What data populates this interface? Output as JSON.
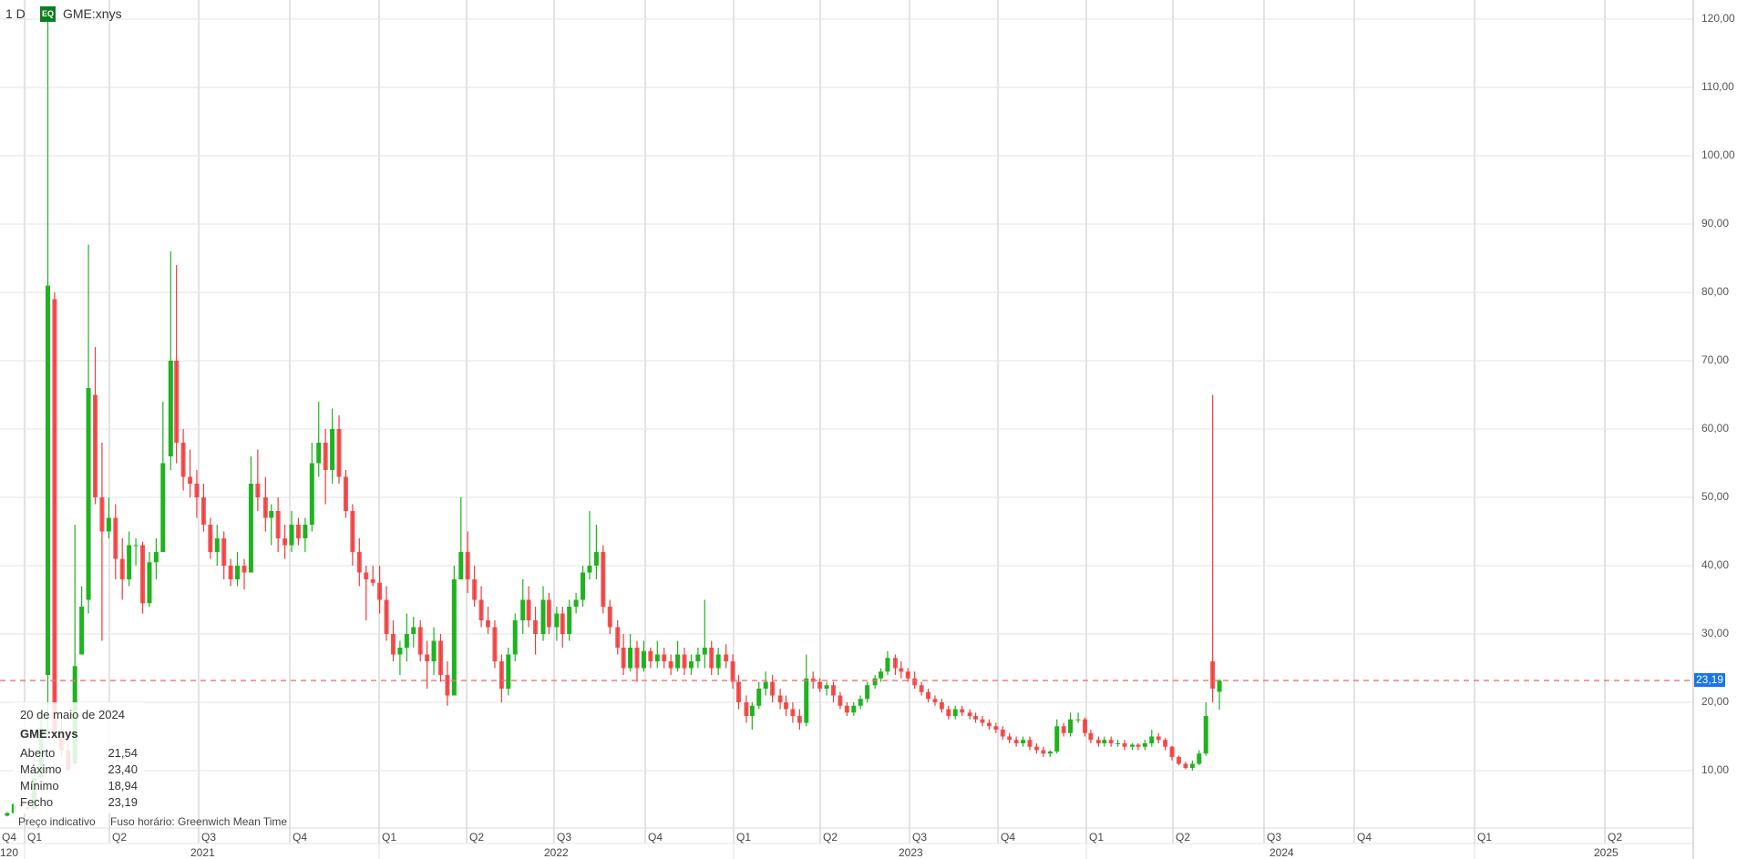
{
  "header": {
    "interval": "1 D",
    "badge": "EQ",
    "symbol": "GME:xnys"
  },
  "legend": {
    "date": "20 de maio de 2024",
    "symbol": "GME:xnys",
    "rows": [
      {
        "label": "Aberto",
        "value": "21,54"
      },
      {
        "label": "Máximo",
        "value": "23,40"
      },
      {
        "label": "Mínimo",
        "value": "18,94"
      },
      {
        "label": "Fecho",
        "value": "23,19"
      }
    ]
  },
  "footer": {
    "indicative": "Preço indicativo",
    "timezone": "Fuso horário: Greenwich Mean Time"
  },
  "colors": {
    "up": "#1fb31f",
    "down": "#f03a3a",
    "last_price_line": "#f07070",
    "price_tag": "#1a73e8",
    "badge": "#0b7d1f"
  },
  "chart_data": {
    "type": "candlestick",
    "series_label": "GME:xnys",
    "interval": "1 D",
    "last_price": 23.19,
    "last_price_label": "23,19",
    "ylim": [
      0,
      120
    ],
    "grid": true,
    "y_ticks": [
      "10,00",
      "20,00",
      "30,00",
      "40,00",
      "50,00",
      "60,00",
      "70,00",
      "80,00",
      "90,00",
      "100,00",
      "110,00",
      "120,00"
    ],
    "x_quarter_ticks": [
      "Q4",
      "Q1",
      "Q2",
      "Q3",
      "Q4",
      "Q1",
      "Q2",
      "Q3",
      "Q4",
      "Q1",
      "Q2",
      "Q3",
      "Q4",
      "Q1",
      "Q2",
      "Q3",
      "Q4",
      "Q1",
      "Q2"
    ],
    "x_year_ticks": [
      "120",
      "2021",
      "2022",
      "2023",
      "2024",
      "2025"
    ],
    "candles_columns": [
      "date",
      "open",
      "high",
      "low",
      "close"
    ],
    "candles": [
      [
        "2020-12-14",
        3.4,
        3.9,
        3.3,
        3.8
      ],
      [
        "2020-12-21",
        3.8,
        5.3,
        3.7,
        5.1
      ],
      [
        "2020-12-28",
        5.1,
        5.5,
        4.3,
        4.7
      ],
      [
        "2021-01-04",
        4.7,
        5.0,
        4.2,
        4.4
      ],
      [
        "2021-01-11",
        4.4,
        10.0,
        4.5,
        8.9
      ],
      [
        "2021-01-18",
        9.0,
        19.0,
        8.8,
        16.3
      ],
      [
        "2021-01-25",
        24.0,
        120.0,
        15.0,
        81.0
      ],
      [
        "2021-02-01",
        79.0,
        80.0,
        14.0,
        15.9
      ],
      [
        "2021-02-08",
        15.0,
        18.0,
        12.0,
        13.0
      ],
      [
        "2021-02-15",
        13.0,
        14.0,
        10.0,
        10.1
      ],
      [
        "2021-02-22",
        11.0,
        46.0,
        11.0,
        25.3
      ],
      [
        "2021-03-01",
        27.0,
        37.0,
        28.0,
        34.0
      ],
      [
        "2021-03-08",
        35.0,
        87.0,
        33.0,
        66.0
      ],
      [
        "2021-03-15",
        65.0,
        72.0,
        49.0,
        50.0
      ],
      [
        "2021-03-22",
        50.0,
        58.0,
        29.0,
        45.0
      ],
      [
        "2021-03-29",
        45.0,
        50.0,
        44.0,
        47.0
      ],
      [
        "2021-04-05",
        47.0,
        49.0,
        38.0,
        41.0
      ],
      [
        "2021-04-12",
        41.0,
        44.0,
        35.0,
        38.0
      ],
      [
        "2021-04-19",
        38.0,
        45.0,
        37.0,
        43.0
      ],
      [
        "2021-04-26",
        43.0,
        44.0,
        40.0,
        43.0
      ],
      [
        "2021-05-03",
        43.0,
        43.5,
        33.0,
        34.5
      ],
      [
        "2021-05-10",
        34.5,
        42.0,
        34.0,
        40.5
      ],
      [
        "2021-05-17",
        40.5,
        44.0,
        38.0,
        42.0
      ],
      [
        "2021-05-24",
        42.0,
        64.0,
        42.0,
        55.0
      ],
      [
        "2021-06-01",
        56.0,
        86.0,
        54.0,
        70.0
      ],
      [
        "2021-06-07",
        70.0,
        84.0,
        55.0,
        58.0
      ],
      [
        "2021-06-14",
        58.0,
        60.0,
        51.0,
        53.0
      ],
      [
        "2021-06-21",
        53.0,
        57.0,
        50.0,
        52.0
      ],
      [
        "2021-06-28",
        52.0,
        54.0,
        47.0,
        50.0
      ],
      [
        "2021-07-05",
        50.0,
        52.0,
        45.0,
        46.0
      ],
      [
        "2021-07-12",
        46.0,
        47.0,
        41.0,
        42.0
      ],
      [
        "2021-07-19",
        42.0,
        46.0,
        40.0,
        44.0
      ],
      [
        "2021-07-26",
        44.0,
        45.0,
        38.0,
        40.0
      ],
      [
        "2021-08-02",
        40.0,
        41.0,
        37.0,
        38.0
      ],
      [
        "2021-08-09",
        38.0,
        42.0,
        37.0,
        40.0
      ],
      [
        "2021-08-16",
        40.0,
        41.0,
        36.5,
        39.0
      ],
      [
        "2021-08-23",
        39.0,
        56.0,
        39.0,
        52.0
      ],
      [
        "2021-08-30",
        52.0,
        57.0,
        48.0,
        50.0
      ],
      [
        "2021-09-07",
        50.0,
        53.0,
        45.0,
        47.0
      ],
      [
        "2021-09-13",
        47.0,
        49.0,
        43.0,
        48.0
      ],
      [
        "2021-09-20",
        48.0,
        50.0,
        42.0,
        44.0
      ],
      [
        "2021-09-27",
        44.0,
        46.0,
        41.0,
        43.0
      ],
      [
        "2021-10-04",
        43.0,
        48.0,
        42.0,
        46.0
      ],
      [
        "2021-10-11",
        46.0,
        47.0,
        43.0,
        44.0
      ],
      [
        "2021-10-18",
        44.0,
        47.0,
        42.0,
        46.0
      ],
      [
        "2021-10-25",
        46.0,
        58.0,
        45.0,
        55.0
      ],
      [
        "2021-11-01",
        55.0,
        64.0,
        53.0,
        58.0
      ],
      [
        "2021-11-08",
        58.0,
        60.0,
        49.0,
        54.0
      ],
      [
        "2021-11-15",
        54.0,
        63.0,
        52.0,
        60.0
      ],
      [
        "2021-11-22",
        60.0,
        62.0,
        52.0,
        53.0
      ],
      [
        "2021-11-29",
        53.0,
        54.0,
        47.0,
        48.0
      ],
      [
        "2021-12-06",
        48.0,
        49.0,
        40.0,
        42.0
      ],
      [
        "2021-12-13",
        42.0,
        44.0,
        37.0,
        39.0
      ],
      [
        "2021-12-20",
        39.0,
        40.0,
        32.0,
        38.0
      ],
      [
        "2021-12-27",
        38.0,
        40.0,
        37.0,
        37.5
      ],
      [
        "2022-01-03",
        37.5,
        40.0,
        33.0,
        35.0
      ],
      [
        "2022-01-10",
        35.0,
        37.0,
        29.0,
        30.0
      ],
      [
        "2022-01-17",
        30.0,
        32.0,
        26.0,
        27.0
      ],
      [
        "2022-01-24",
        27.0,
        29.0,
        24.0,
        28.0
      ],
      [
        "2022-01-31",
        28.0,
        33.0,
        26.0,
        30.0
      ],
      [
        "2022-02-07",
        30.0,
        32.5,
        28.0,
        31.0
      ],
      [
        "2022-02-14",
        31.0,
        32.0,
        26.0,
        27.0
      ],
      [
        "2022-02-21",
        27.0,
        29.0,
        22.0,
        26.0
      ],
      [
        "2022-02-28",
        26.0,
        31.0,
        24.0,
        29.0
      ],
      [
        "2022-03-07",
        29.0,
        30.0,
        23.0,
        24.0
      ],
      [
        "2022-03-14",
        24.0,
        26.0,
        19.5,
        21.0
      ],
      [
        "2022-03-21",
        21.0,
        40.0,
        21.0,
        38.0
      ],
      [
        "2022-03-28",
        38.0,
        50.0,
        38.0,
        42.0
      ],
      [
        "2022-04-04",
        42.0,
        45.0,
        36.0,
        38.0
      ],
      [
        "2022-04-11",
        38.0,
        40.0,
        34.0,
        35.0
      ],
      [
        "2022-04-18",
        35.0,
        37.0,
        31.0,
        32.0
      ],
      [
        "2022-04-25",
        32.0,
        34.0,
        30.0,
        31.0
      ],
      [
        "2022-05-02",
        31.0,
        32.0,
        25.0,
        26.0
      ],
      [
        "2022-05-09",
        26.0,
        27.0,
        20.0,
        22.0
      ],
      [
        "2022-05-16",
        22.0,
        28.0,
        21.0,
        27.0
      ],
      [
        "2022-05-23",
        27.0,
        33.0,
        26.0,
        32.0
      ],
      [
        "2022-05-31",
        32.0,
        38.0,
        30.0,
        35.0
      ],
      [
        "2022-06-06",
        35.0,
        37.0,
        31.0,
        32.0
      ],
      [
        "2022-06-13",
        32.0,
        34.0,
        27.0,
        30.0
      ],
      [
        "2022-06-21",
        30.0,
        37.0,
        29.0,
        35.0
      ],
      [
        "2022-06-27",
        35.0,
        36.0,
        30.0,
        31.0
      ],
      [
        "2022-07-05",
        31.0,
        34.0,
        29.0,
        33.0
      ],
      [
        "2022-07-11",
        33.0,
        34.0,
        28.0,
        30.0
      ],
      [
        "2022-07-18",
        30.0,
        35.0,
        29.0,
        34.0
      ],
      [
        "2022-07-25",
        34.0,
        36.0,
        33.0,
        35.0
      ],
      [
        "2022-08-01",
        35.0,
        40.0,
        34.0,
        39.0
      ],
      [
        "2022-08-08",
        39.0,
        48.0,
        38.0,
        40.0
      ],
      [
        "2022-08-15",
        40.0,
        46.0,
        38.0,
        42.0
      ],
      [
        "2022-08-22",
        42.0,
        43.0,
        33.0,
        34.0
      ],
      [
        "2022-08-29",
        34.0,
        35.0,
        30.0,
        31.0
      ],
      [
        "2022-09-06",
        31.0,
        32.0,
        27.0,
        28.0
      ],
      [
        "2022-09-12",
        28.0,
        30.0,
        24.0,
        25.0
      ],
      [
        "2022-09-19",
        25.0,
        30.0,
        24.5,
        28.0
      ],
      [
        "2022-09-26",
        28.0,
        29.0,
        23.0,
        25.0
      ],
      [
        "2022-10-03",
        25.0,
        29.0,
        24.5,
        27.5
      ],
      [
        "2022-10-10",
        27.5,
        28.0,
        25.0,
        26.0
      ],
      [
        "2022-10-17",
        26.0,
        29.0,
        25.0,
        27.0
      ],
      [
        "2022-10-24",
        27.0,
        28.0,
        25.0,
        26.0
      ],
      [
        "2022-10-31",
        26.0,
        27.0,
        24.0,
        25.0
      ],
      [
        "2022-11-07",
        25.0,
        29.0,
        24.5,
        27.0
      ],
      [
        "2022-11-14",
        27.0,
        28.0,
        24.0,
        25.0
      ],
      [
        "2022-11-21",
        25.0,
        27.0,
        24.0,
        26.0
      ],
      [
        "2022-11-28",
        26.0,
        28.0,
        25.0,
        27.0
      ],
      [
        "2022-12-05",
        27.0,
        35.0,
        25.0,
        28.0
      ],
      [
        "2022-12-12",
        28.0,
        29.0,
        24.0,
        25.0
      ],
      [
        "2022-12-19",
        25.0,
        28.0,
        24.0,
        27.0
      ],
      [
        "2022-12-27",
        27.0,
        28.5,
        25.0,
        26.0
      ],
      [
        "2023-01-03",
        26.0,
        27.0,
        22.0,
        23.0
      ],
      [
        "2023-01-09",
        23.0,
        24.0,
        19.0,
        20.0
      ],
      [
        "2023-01-17",
        20.0,
        21.0,
        17.0,
        18.0
      ],
      [
        "2023-01-23",
        18.0,
        20.0,
        16.0,
        19.5
      ],
      [
        "2023-01-30",
        19.5,
        23.0,
        19.0,
        22.0
      ],
      [
        "2023-02-06",
        22.0,
        24.5,
        21.0,
        23.0
      ],
      [
        "2023-02-13",
        23.0,
        24.0,
        20.0,
        21.0
      ],
      [
        "2023-02-21",
        21.0,
        22.0,
        19.0,
        20.0
      ],
      [
        "2023-02-27",
        20.0,
        21.0,
        18.0,
        19.0
      ],
      [
        "2023-03-06",
        19.0,
        20.0,
        17.0,
        18.0
      ],
      [
        "2023-03-13",
        18.0,
        19.0,
        16.0,
        17.0
      ],
      [
        "2023-03-20",
        17.0,
        27.0,
        16.5,
        23.5
      ],
      [
        "2023-03-27",
        23.5,
        24.5,
        22.0,
        23.0
      ],
      [
        "2023-04-03",
        23.0,
        23.5,
        21.5,
        22.0
      ],
      [
        "2023-04-10",
        22.0,
        23.0,
        21.0,
        22.5
      ],
      [
        "2023-04-17",
        22.5,
        23.0,
        20.0,
        21.0
      ],
      [
        "2023-04-24",
        21.0,
        21.5,
        19.0,
        19.5
      ],
      [
        "2023-05-01",
        19.5,
        20.0,
        18.0,
        18.5
      ],
      [
        "2023-05-08",
        18.5,
        20.0,
        18.0,
        19.5
      ],
      [
        "2023-05-15",
        19.5,
        21.0,
        19.0,
        20.5
      ],
      [
        "2023-05-22",
        20.5,
        23.0,
        20.0,
        22.5
      ],
      [
        "2023-05-30",
        22.5,
        24.0,
        22.0,
        23.5
      ],
      [
        "2023-06-05",
        23.5,
        25.0,
        23.0,
        24.5
      ],
      [
        "2023-06-12",
        24.5,
        27.5,
        24.0,
        26.5
      ],
      [
        "2023-06-20",
        26.5,
        27.0,
        24.0,
        25.0
      ],
      [
        "2023-06-26",
        25.0,
        26.0,
        23.5,
        24.5
      ],
      [
        "2023-07-03",
        24.5,
        25.0,
        23.0,
        23.5
      ],
      [
        "2023-07-10",
        23.5,
        24.5,
        22.0,
        22.5
      ],
      [
        "2023-07-17",
        22.5,
        23.0,
        21.0,
        21.5
      ],
      [
        "2023-07-24",
        21.5,
        22.0,
        20.0,
        20.5
      ],
      [
        "2023-07-31",
        20.5,
        21.0,
        19.5,
        20.0
      ],
      [
        "2023-08-07",
        20.0,
        20.5,
        18.5,
        19.0
      ],
      [
        "2023-08-14",
        19.0,
        19.5,
        17.5,
        18.0
      ],
      [
        "2023-08-21",
        18.0,
        19.5,
        17.5,
        19.0
      ],
      [
        "2023-08-28",
        19.0,
        19.5,
        18.0,
        18.5
      ],
      [
        "2023-09-05",
        18.5,
        19.0,
        17.5,
        18.0
      ],
      [
        "2023-09-11",
        18.0,
        18.5,
        17.0,
        17.5
      ],
      [
        "2023-09-18",
        17.5,
        18.0,
        16.5,
        17.0
      ],
      [
        "2023-09-25",
        17.0,
        17.5,
        16.0,
        16.5
      ],
      [
        "2023-10-02",
        16.5,
        17.0,
        15.5,
        16.0
      ],
      [
        "2023-10-09",
        16.0,
        16.5,
        14.5,
        15.0
      ],
      [
        "2023-10-16",
        15.0,
        15.5,
        14.0,
        14.5
      ],
      [
        "2023-10-23",
        14.5,
        15.0,
        13.5,
        14.0
      ],
      [
        "2023-10-30",
        14.0,
        15.0,
        13.5,
        14.5
      ],
      [
        "2023-11-06",
        14.5,
        15.0,
        13.0,
        13.5
      ],
      [
        "2023-11-13",
        13.5,
        14.0,
        12.5,
        13.0
      ],
      [
        "2023-11-20",
        13.0,
        13.5,
        12.0,
        12.5
      ],
      [
        "2023-11-27",
        12.5,
        13.0,
        12.0,
        12.8
      ],
      [
        "2023-12-04",
        12.8,
        17.5,
        12.5,
        16.5
      ],
      [
        "2023-12-11",
        16.5,
        17.0,
        15.0,
        15.5
      ],
      [
        "2023-12-18",
        15.5,
        18.5,
        15.0,
        17.5
      ],
      [
        "2023-12-26",
        17.5,
        18.5,
        17.0,
        17.5
      ],
      [
        "2024-01-02",
        17.5,
        17.8,
        15.0,
        15.5
      ],
      [
        "2024-01-08",
        15.5,
        16.0,
        14.0,
        14.5
      ],
      [
        "2024-01-16",
        14.5,
        15.0,
        13.5,
        14.0
      ],
      [
        "2024-01-22",
        14.0,
        15.0,
        13.5,
        14.5
      ],
      [
        "2024-01-29",
        14.5,
        15.0,
        13.5,
        14.0
      ],
      [
        "2024-02-05",
        14.0,
        14.5,
        13.5,
        14.0
      ],
      [
        "2024-02-12",
        14.0,
        14.5,
        13.0,
        13.5
      ],
      [
        "2024-02-20",
        13.5,
        14.0,
        13.0,
        13.8
      ],
      [
        "2024-02-26",
        13.8,
        14.0,
        13.0,
        13.5
      ],
      [
        "2024-03-04",
        13.5,
        14.5,
        13.0,
        14.0
      ],
      [
        "2024-03-11",
        14.0,
        16.0,
        13.5,
        15.0
      ],
      [
        "2024-03-18",
        15.0,
        15.5,
        14.0,
        14.5
      ],
      [
        "2024-03-25",
        14.5,
        14.8,
        13.0,
        13.5
      ],
      [
        "2024-04-01",
        13.5,
        13.6,
        11.5,
        12.0
      ],
      [
        "2024-04-08",
        12.0,
        12.2,
        10.8,
        11.0
      ],
      [
        "2024-04-15",
        11.0,
        11.3,
        10.2,
        10.4
      ],
      [
        "2024-04-22",
        10.4,
        11.5,
        10.0,
        11.0
      ],
      [
        "2024-04-29",
        11.0,
        13.0,
        10.8,
        12.5
      ],
      [
        "2024-05-06",
        12.5,
        20.0,
        12.2,
        18.0
      ],
      [
        "2024-05-13",
        26.0,
        65.0,
        20.0,
        22.0
      ],
      [
        "2024-05-20",
        21.54,
        23.4,
        18.94,
        23.19
      ]
    ]
  }
}
